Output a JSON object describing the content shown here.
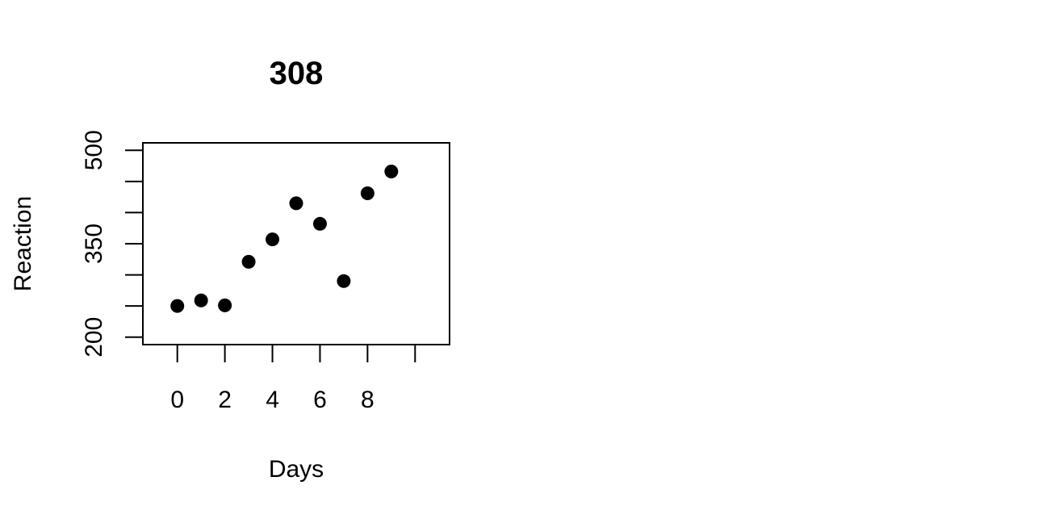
{
  "chart_data": {
    "type": "scatter",
    "title": "308",
    "xlabel": "Days",
    "ylabel": "Reaction",
    "x": [
      0,
      1,
      2,
      3,
      4,
      5,
      6,
      7,
      8,
      9
    ],
    "y": [
      250,
      259,
      251,
      321,
      357,
      415,
      382,
      290,
      431,
      466
    ],
    "xlim": [
      -1.45,
      11.45
    ],
    "ylim": [
      188,
      512
    ],
    "x_ticks": [
      0,
      2,
      4,
      6,
      8,
      10
    ],
    "x_tick_labels": [
      "0",
      "2",
      "4",
      "6",
      "8",
      ""
    ],
    "y_ticks": [
      200,
      250,
      300,
      350,
      400,
      450,
      500
    ],
    "y_tick_labels": [
      "200",
      "",
      "",
      "350",
      "",
      "",
      "500"
    ],
    "grid": false,
    "legend": "none",
    "marker_color": "#000000"
  }
}
